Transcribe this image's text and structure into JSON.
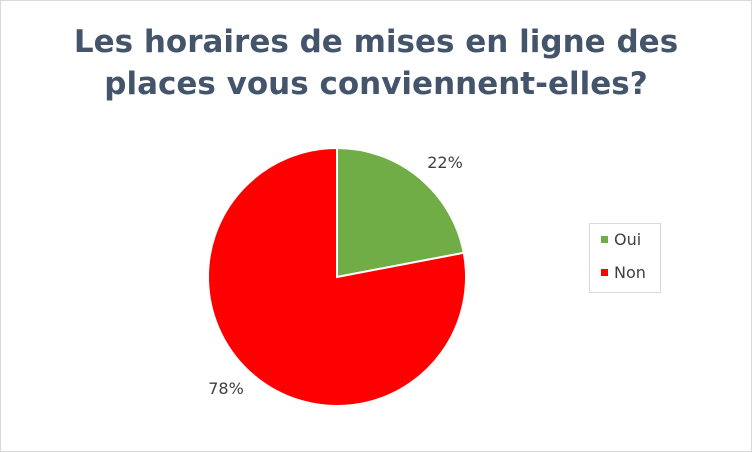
{
  "chart_data": {
    "type": "pie",
    "title": "Les horaires de mises en ligne des places vous conviennent-elles?",
    "title_lines": [
      "Les horaires de mises en ligne des",
      "places vous conviennent-elles?"
    ],
    "categories": [
      "Oui",
      "Non"
    ],
    "values": [
      22,
      78
    ],
    "labels": [
      "22%",
      "78%"
    ],
    "colors": [
      "#70ad47",
      "#ff0000"
    ],
    "legend_position": "right",
    "start_angle_deg": 0,
    "direction": "clockwise"
  }
}
